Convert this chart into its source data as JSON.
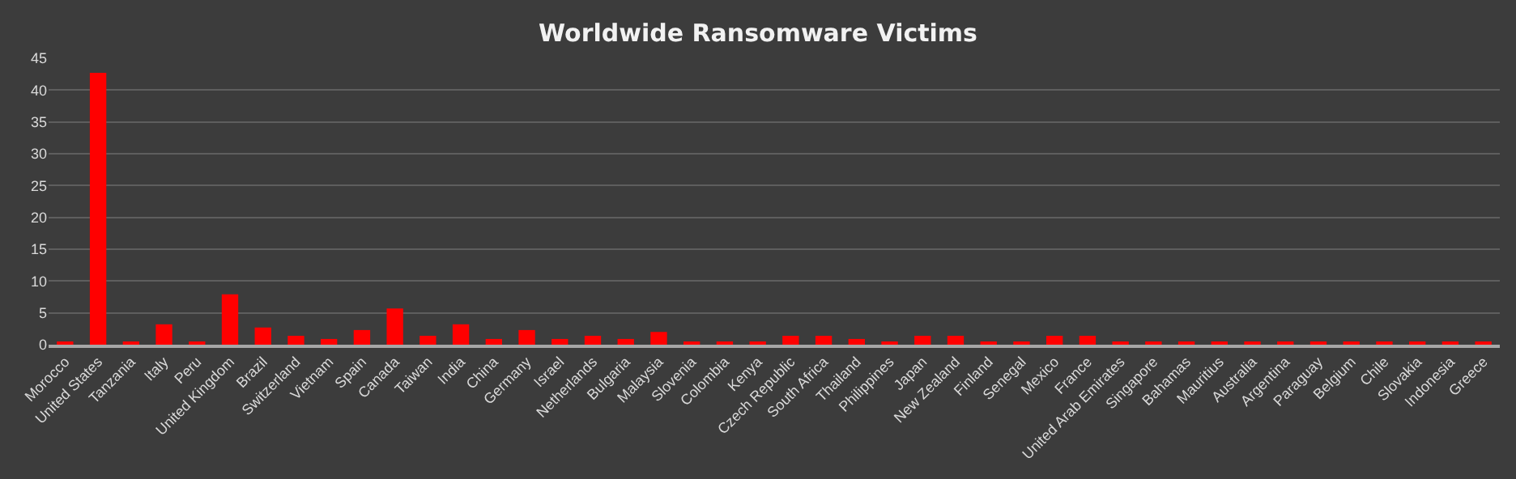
{
  "chart_data": {
    "type": "bar",
    "title": "Worldwide Ransomware Victims",
    "categories": [
      "Morocco",
      "United States",
      "Tanzania",
      "Italy",
      "Peru",
      "United Kingdom",
      "Brazil",
      "Switzerland",
      "Vietnam",
      "Spain",
      "Canada",
      "Taiwan",
      "India",
      "China",
      "Germany",
      "Israel",
      "Netherlands",
      "Bulgaria",
      "Malaysia",
      "Slovenia",
      "Colombia",
      "Kenya",
      "Czech Republic",
      "South Africa",
      "Thailand",
      "Philippines",
      "Japan",
      "New Zealand",
      "Finland",
      "Senegal",
      "Mexico",
      "France",
      "United Arab Emirates",
      "Singapore",
      "Bahamas",
      "Mauritius",
      "Australia",
      "Argentina",
      "Paraguay",
      "Belgium",
      "Chile",
      "Slovakia",
      "Indonesia",
      "Greece"
    ],
    "values": [
      0.5,
      42.7,
      0.5,
      3.2,
      0.5,
      7.9,
      2.7,
      1.4,
      0.9,
      2.3,
      5.7,
      1.4,
      3.2,
      0.9,
      2.3,
      0.9,
      1.4,
      0.9,
      2.0,
      0.5,
      0.5,
      0.5,
      1.4,
      1.4,
      0.9,
      0.5,
      1.4,
      1.4,
      0.5,
      0.5,
      1.4,
      1.4,
      0.5,
      0.5,
      0.5,
      0.5,
      0.5,
      0.5,
      0.5,
      0.5,
      0.5,
      0.5,
      0.5,
      0.5
    ],
    "color": "#ff0000",
    "ylim": [
      0,
      45
    ],
    "yticks": [
      0,
      5,
      10,
      15,
      20,
      25,
      30,
      35,
      40,
      45
    ],
    "grid": "y"
  }
}
